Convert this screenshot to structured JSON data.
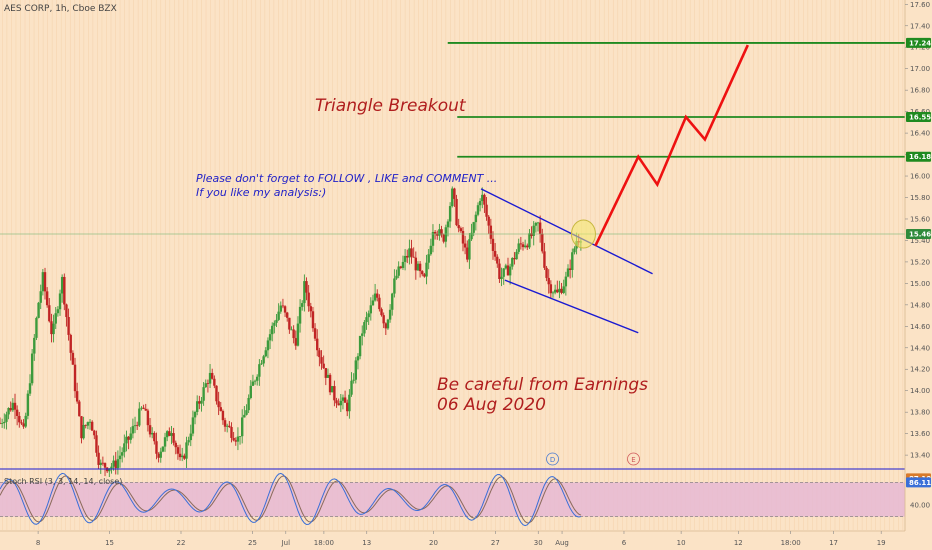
{
  "header": {
    "symbol": "AES CORP, 1h, Cboe BZX"
  },
  "colors": {
    "background": "#fbe3c6",
    "grid_line": "#f0c89c",
    "up_candle": "#3c9a3c",
    "down_candle": "#c02424",
    "triangle_line": "#1a1ad2",
    "projection": "#ee1111",
    "level_line": "#1f8a1f",
    "last_price_line": "#78b878",
    "oscillator_band": "#e6b8d4",
    "k_line": "#3a6fd8",
    "d_line": "#8a6a5a"
  },
  "chart_data": {
    "type": "candlestick",
    "y_axis": {
      "min": 13.28,
      "max": 17.64,
      "ticks": [
        13.4,
        13.6,
        13.8,
        14.0,
        14.2,
        14.4,
        14.6,
        14.8,
        15.0,
        15.2,
        15.4,
        15.6,
        15.8,
        16.0,
        16.2,
        16.4,
        16.6,
        16.8,
        17.0,
        17.2,
        17.4,
        17.6
      ],
      "tick_labels": [
        "13.40",
        "13.60",
        "13.80",
        "14.00",
        "14.20",
        "14.40",
        "14.60",
        "14.80",
        "15.00",
        "15.20",
        "15.40",
        "15.60",
        "15.80",
        "16.00",
        "16.20",
        "16.40",
        "16.60",
        "16.80",
        "17.00",
        "17.20",
        "17.40",
        "17.60"
      ]
    },
    "x_axis": {
      "min": 0,
      "max": 190,
      "note": "hourly bars (7 per trading day)",
      "tick_labels": [
        {
          "label": "8",
          "x": 8
        },
        {
          "label": "15",
          "x": 23
        },
        {
          "label": "22",
          "x": 38
        },
        {
          "label": "25",
          "x": 53
        },
        {
          "label": "Jul",
          "x": 60
        },
        {
          "label": "18:00",
          "x": 68
        },
        {
          "label": "13",
          "x": 77
        },
        {
          "label": "20",
          "x": 91
        },
        {
          "label": "27",
          "x": 104
        },
        {
          "label": "30",
          "x": 113
        },
        {
          "label": "Aug",
          "x": 118
        },
        {
          "label": "6",
          "x": 131
        },
        {
          "label": "10",
          "x": 143
        },
        {
          "label": "12",
          "x": 155
        },
        {
          "label": "18:00",
          "x": 166
        },
        {
          "label": "17",
          "x": 175
        },
        {
          "label": "19",
          "x": 185
        },
        {
          "label": "18:00",
          "x": 196
        }
      ]
    },
    "price_path": [
      [
        0,
        13.7
      ],
      [
        3,
        13.9
      ],
      [
        5,
        13.6
      ],
      [
        8,
        14.8
      ],
      [
        9,
        15.05
      ],
      [
        11,
        14.5
      ],
      [
        13,
        15.05
      ],
      [
        15,
        14.3
      ],
      [
        17,
        13.6
      ],
      [
        19,
        13.75
      ],
      [
        21,
        13.3
      ],
      [
        24,
        13.3
      ],
      [
        27,
        13.55
      ],
      [
        30,
        13.85
      ],
      [
        33,
        13.4
      ],
      [
        36,
        13.65
      ],
      [
        38,
        13.3
      ],
      [
        41,
        13.8
      ],
      [
        44,
        14.15
      ],
      [
        47,
        13.7
      ],
      [
        50,
        13.55
      ],
      [
        53,
        14.05
      ],
      [
        56,
        14.45
      ],
      [
        59,
        14.8
      ],
      [
        62,
        14.45
      ],
      [
        64,
        15.0
      ],
      [
        67,
        14.35
      ],
      [
        70,
        13.95
      ],
      [
        73,
        13.85
      ],
      [
        76,
        14.55
      ],
      [
        79,
        14.9
      ],
      [
        81,
        14.6
      ],
      [
        83,
        15.05
      ],
      [
        86,
        15.3
      ],
      [
        89,
        15.0
      ],
      [
        91,
        15.55
      ],
      [
        93,
        15.4
      ],
      [
        95,
        15.85
      ],
      [
        96,
        15.55
      ],
      [
        98,
        15.25
      ],
      [
        99,
        15.45
      ],
      [
        101,
        15.85
      ],
      [
        103,
        15.45
      ],
      [
        105,
        15.05
      ],
      [
        107,
        15.15
      ],
      [
        109,
        15.35
      ],
      [
        111,
        15.4
      ],
      [
        113,
        15.55
      ],
      [
        115,
        15.0
      ],
      [
        117,
        14.9
      ],
      [
        119,
        15.05
      ],
      [
        121,
        15.4
      ],
      [
        122,
        15.45
      ]
    ],
    "levels": [
      {
        "value": 17.24,
        "label": "17.24",
        "x_start": 94
      },
      {
        "value": 16.55,
        "label": "16.55",
        "x_start": 96
      },
      {
        "value": 16.18,
        "label": "16.18",
        "x_start": 96
      }
    ],
    "last_price": {
      "value": 15.46,
      "label": "15.46"
    },
    "triangle": {
      "upper": [
        [
          101,
          15.88
        ],
        [
          137,
          15.09
        ]
      ],
      "lower": [
        [
          106,
          15.03
        ],
        [
          134,
          14.54
        ]
      ]
    },
    "projection": [
      [
        125,
        15.35
      ],
      [
        134,
        16.18
      ],
      [
        138,
        15.92
      ],
      [
        144,
        16.55
      ],
      [
        148,
        16.34
      ],
      [
        157,
        17.22
      ]
    ],
    "breakout_marker": {
      "x": 122.5,
      "y": 15.46
    },
    "event_markers": [
      {
        "label": "D",
        "x": 116
      },
      {
        "label": "E",
        "x": 133
      }
    ],
    "annotations": {
      "triangle_title": "Triangle Breakout",
      "follow_line1": "Please don't forget  to FOLLOW , LIKE and COMMENT ...",
      "follow_line2": "If you like my analysis:)",
      "earnings_line1": "Be careful from Earnings",
      "earnings_line2": "06 Aug 2020"
    },
    "oscillator": {
      "title": "Stoch RSI (3, 3, 14, 14, close)",
      "range": [
        0,
        100
      ],
      "upper_band": 80,
      "lower_band": 20,
      "ticks": [
        40.0
      ],
      "tick_labels": [
        "40.00"
      ],
      "k_value": 87.1,
      "k_label": "87.10",
      "d_value": 86.11,
      "d_label": "86.11"
    }
  }
}
